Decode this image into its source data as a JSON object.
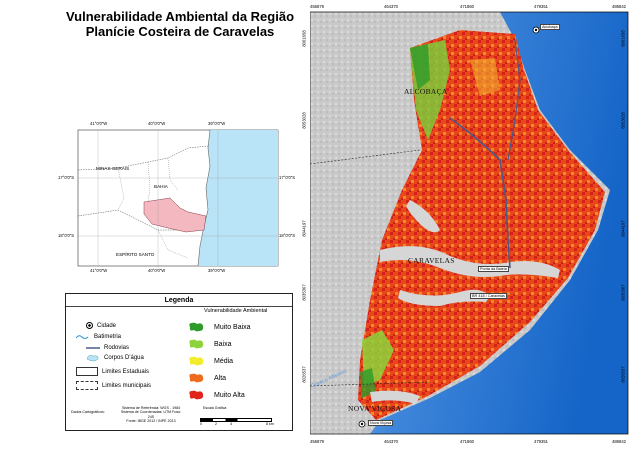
{
  "title": {
    "line1": "Vulnerabilidade Ambiental da Região",
    "line2": "Planície Costeira de Caravelas"
  },
  "locator": {
    "top_ticks": [
      "41°0'0\"W",
      "40°0'0\"W",
      "39°0'0\"W"
    ],
    "bottom_ticks": [
      "41°0'0\"W",
      "40°0'0\"W",
      "39°0'0\"W"
    ],
    "left_ticks": [
      "17°0'0\"S",
      "18°0'0\"S"
    ],
    "right_ticks": [
      "17°0'0\"S",
      "18°0'0\"S"
    ],
    "labels": {
      "mg": "MINAS GERAIS",
      "ba": "BAHIA",
      "es": "ESPÍRITO SANTO"
    },
    "colors": {
      "ocean": "#b9e3f7",
      "study_area": "#f4b8c0"
    }
  },
  "legend": {
    "title": "Legenda",
    "vuln_title": "Vulnerabilidade Ambiental",
    "items": {
      "cidade": "Cidade",
      "batimetria": "Batimetria",
      "rodovias": "Rodovias",
      "corpos": "Corpos D'água",
      "estaduais": "Limites Estaduais",
      "municipais": "Limites municipais"
    },
    "classes": [
      {
        "label": "Muito Baixa",
        "color": "#2e9a2b"
      },
      {
        "label": "Baixa",
        "color": "#8cd43a"
      },
      {
        "label": "Média",
        "color": "#f2ec2c"
      },
      {
        "label": "Alta",
        "color": "#f06a1c"
      },
      {
        "label": "Muito Alta",
        "color": "#e0261a"
      }
    ]
  },
  "credits": {
    "left": "Dados Cartográficos:",
    "proj": [
      "Sistema de Referência: WGS - 1984",
      "Sistema de Coordenadas: UTM Fuso: 24S",
      "Fonte: IBGE 2012 / INPE 2013"
    ],
    "scale_title": "Escala Gráfica",
    "scale_ticks": [
      "0",
      "2",
      "4",
      "8 km"
    ]
  },
  "map": {
    "x_ticks": [
      "456879",
      "464370",
      "471860",
      "479351",
      "486842"
    ],
    "y_ticks": [
      "8061658",
      "8053028",
      "8044197",
      "8035367",
      "8026537"
    ],
    "cities": {
      "alcobaca": "ALCOBAÇA",
      "caravelas": "CARAVELAS",
      "nova_vicosa": "NOVA VIÇOSA"
    },
    "small_labels": {
      "alcobaca_pt": "Alcobaça",
      "ponta": "Ponta da Baleia",
      "farol": "BR 418 / Caravelas",
      "nv_pt": "Nova Viçosa"
    },
    "coast_label": "Oceano Atlântico",
    "colors": {
      "sea_deep": "#1565c8",
      "sea_shallow": "#3f86da",
      "land_relief": "#c8c8c8"
    }
  }
}
